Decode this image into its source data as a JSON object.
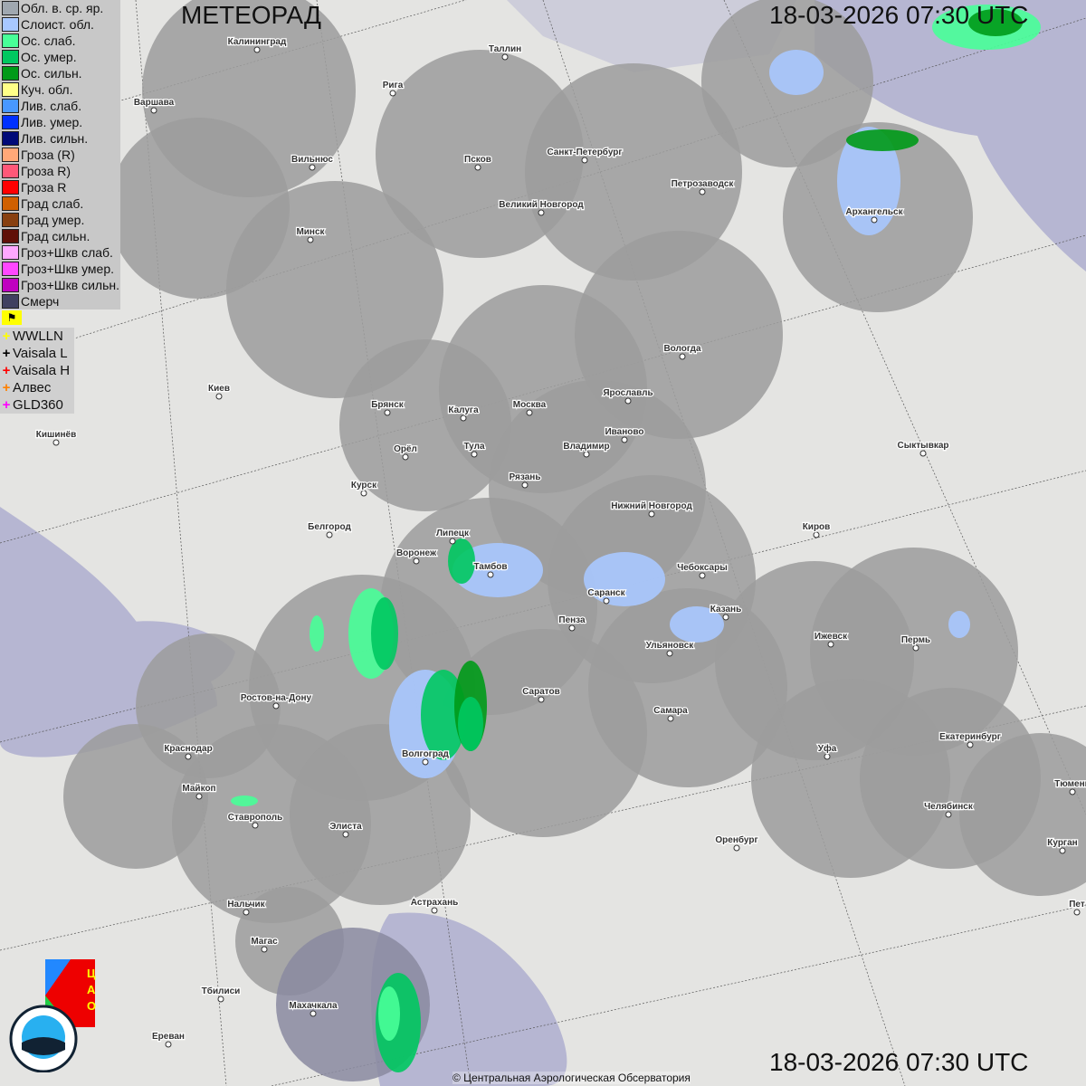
{
  "header": {
    "title": "МЕТЕОРАД",
    "datetime_top": "18-03-2026  07:30 UTC",
    "datetime_bottom": "18-03-2026  07:30 UTC"
  },
  "legend": [
    {
      "label": "Обл. в. ср. яр.",
      "color": "#a0a8b0"
    },
    {
      "label": "Слоист. обл.",
      "color": "#a8c8ff"
    },
    {
      "label": "Ос. слаб.",
      "color": "#48ff98"
    },
    {
      "label": "Ос. умер.",
      "color": "#00c860"
    },
    {
      "label": "Ос. сильн.",
      "color": "#009a18"
    },
    {
      "label": "Куч. обл.",
      "color": "#ffff88"
    },
    {
      "label": "Лив. слаб.",
      "color": "#4898ff"
    },
    {
      "label": "Лив. умер.",
      "color": "#0030ff"
    },
    {
      "label": "Лив. сильн.",
      "color": "#000a78"
    },
    {
      "label": "Гроза (R)",
      "color": "#ffa878"
    },
    {
      "label": "Гроза R)",
      "color": "#ff5878"
    },
    {
      "label": "Гроза R",
      "color": "#ff0000"
    },
    {
      "label": "Град слаб.",
      "color": "#d06000"
    },
    {
      "label": "Град умер.",
      "color": "#884010"
    },
    {
      "label": "Град сильн.",
      "color": "#601008"
    },
    {
      "label": "Гроз+Шкв слаб.",
      "color": "#ffa8ff"
    },
    {
      "label": "Гроз+Шкв умер.",
      "color": "#ff48ff"
    },
    {
      "label": "Гроз+Шкв сильн.",
      "color": "#c000c0"
    },
    {
      "label": "Смерч",
      "color": "#404060"
    }
  ],
  "flag_icon": "flag-icon",
  "lightning": [
    {
      "label": "WWLLN",
      "color": "#ffff00"
    },
    {
      "label": "Vaisala L",
      "color": "#000000"
    },
    {
      "label": "Vaisala H",
      "color": "#ff0000"
    },
    {
      "label": "Алвес",
      "color": "#ff8000"
    },
    {
      "label": "GLD360",
      "color": "#ff00ff"
    }
  ],
  "cities": [
    "Калининград",
    "Таллин",
    "Рига",
    "Варшава",
    "Вильнюс",
    "Псков",
    "Санкт-Петербург",
    "Петрозаводск",
    "Архангельск",
    "Великий Новгород",
    "Минск",
    "Вологда",
    "Киев",
    "Брянск",
    "Калуга",
    "Москва",
    "Ярославль",
    "Иваново",
    "Кишинёв",
    "Орёл",
    "Тула",
    "Владимир",
    "Сыктывкар",
    "Рязань",
    "Курск",
    "Нижний Новгород",
    "Белгород",
    "Липецк",
    "Киров",
    "Воронеж",
    "Тамбов",
    "Чебоксары",
    "Саранск",
    "Казань",
    "Пенза",
    "Ульяновск",
    "Ижевск",
    "Пермь",
    "Ростов-на-Дону",
    "Саратов",
    "Самара",
    "Краснодар",
    "Волгоград",
    "Уфа",
    "Екатеринбург",
    "Майкоп",
    "Тюмень",
    "Челябинск",
    "Ставрополь",
    "Элиста",
    "Оренбург",
    "Курган",
    "Нальчик",
    "Астрахань",
    "Магас",
    "Тбилиси",
    "Махачкала",
    "Ереван",
    "Пет"
  ],
  "logos": {
    "cao": "ЦАО 1941",
    "roshydromet": "РОСГИДРОМЕТ ROSHYDROMET"
  },
  "copyright": "© Центральная Аэрологическая Обсерватория"
}
